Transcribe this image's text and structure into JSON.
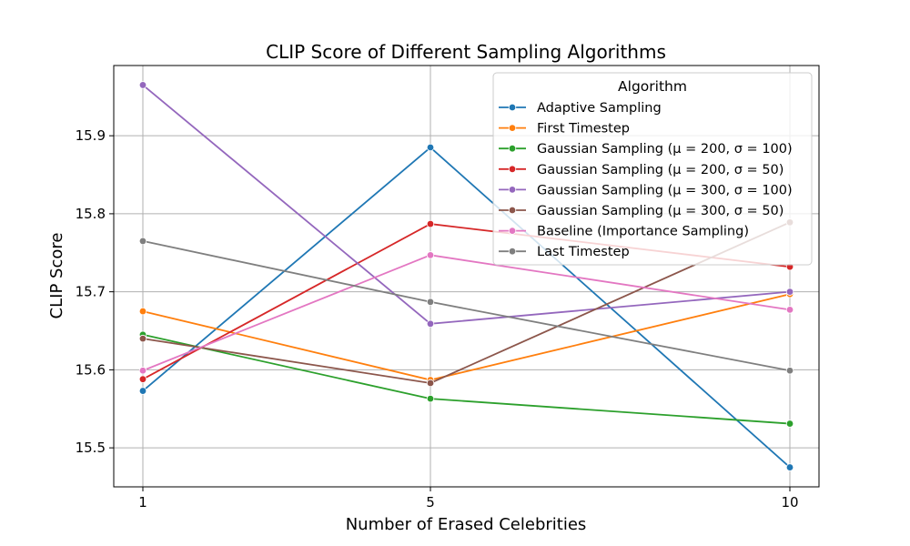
{
  "chart_data": {
    "type": "line",
    "title": "CLIP Score of Different Sampling Algorithms",
    "xlabel": "Number of Erased Celebrities",
    "ylabel": "CLIP Score",
    "x": [
      1,
      5,
      10
    ],
    "x_tick_labels": [
      "1",
      "5",
      "10"
    ],
    "ylim": [
      15.45,
      15.99
    ],
    "y_ticks": [
      15.5,
      15.6,
      15.7,
      15.8,
      15.9
    ],
    "y_tick_labels": [
      "15.5",
      "15.6",
      "15.7",
      "15.8",
      "15.9"
    ],
    "grid": true,
    "legend": {
      "title": "Algorithm",
      "placement": "top-right"
    },
    "series": [
      {
        "name": "Adaptive Sampling",
        "color": "#1f77b4",
        "values": [
          15.573,
          15.885,
          15.475
        ]
      },
      {
        "name": "First Timestep",
        "color": "#ff7f0e",
        "values": [
          15.675,
          15.587,
          15.697
        ]
      },
      {
        "name": "Gaussian Sampling (μ = 200, σ = 100)",
        "color": "#2ca02c",
        "values": [
          15.645,
          15.563,
          15.531
        ]
      },
      {
        "name": "Gaussian Sampling (μ = 200, σ = 50)",
        "color": "#d62728",
        "values": [
          15.588,
          15.787,
          15.732
        ]
      },
      {
        "name": "Gaussian Sampling (μ = 300, σ = 100)",
        "color": "#9467bd",
        "values": [
          15.965,
          15.659,
          15.7
        ]
      },
      {
        "name": "Gaussian Sampling (μ = 300, σ = 50)",
        "color": "#8c564b",
        "values": [
          15.64,
          15.583,
          15.789
        ]
      },
      {
        "name": "Baseline (Importance Sampling)",
        "color": "#e377c2",
        "values": [
          15.599,
          15.747,
          15.677
        ]
      },
      {
        "name": "Last Timestep",
        "color": "#7f7f7f",
        "values": [
          15.765,
          15.687,
          15.599
        ]
      }
    ]
  }
}
